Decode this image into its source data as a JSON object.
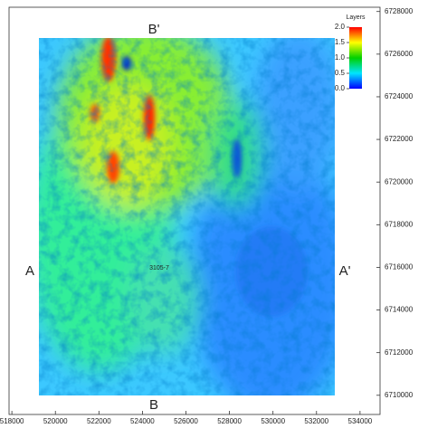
{
  "chart_data": {
    "type": "heatmap",
    "xlim": [
      517870,
      534920
    ],
    "xticks": [
      518000,
      520000,
      522000,
      524000,
      526000,
      528000,
      530000,
      532000,
      534000
    ],
    "ylim": [
      6709100,
      6728200
    ],
    "yticks": [
      6710000,
      6712000,
      6714000,
      6716000,
      6718000,
      6720000,
      6722000,
      6724000,
      6726000,
      6728000
    ],
    "colorbar": {
      "title": "Layers",
      "lim": [
        0,
        2
      ],
      "ticks": [
        {
          "value": 0,
          "label": "0.0"
        },
        {
          "value": 0.5,
          "label": "0.5"
        },
        {
          "value": 1,
          "label": "1.0"
        },
        {
          "value": 1.5,
          "label": "1.5"
        },
        {
          "value": 2,
          "label": "2.0"
        }
      ],
      "colors": [
        "#0000ff",
        "#00e5ff",
        "#00d000",
        "#ffff00",
        "#ff0000"
      ]
    },
    "annotations": [
      "B'",
      "B",
      "A",
      "A'",
      "3105-7"
    ]
  }
}
